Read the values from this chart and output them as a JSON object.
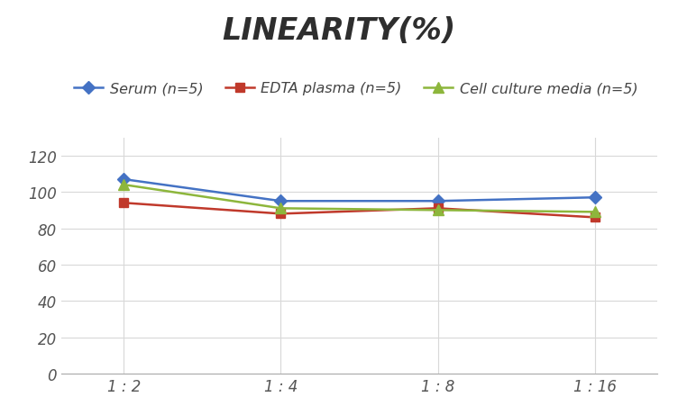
{
  "title": "LINEARITY(%)",
  "x_labels": [
    "1 : 2",
    "1 : 4",
    "1 : 8",
    "1 : 16"
  ],
  "x_positions": [
    0,
    1,
    2,
    3
  ],
  "series": [
    {
      "label": "Serum (n=5)",
      "values": [
        107,
        95,
        95,
        97
      ],
      "color": "#4472C4",
      "marker": "D",
      "markersize": 7,
      "linewidth": 1.8
    },
    {
      "label": "EDTA plasma (n=5)",
      "values": [
        94,
        88,
        91,
        86
      ],
      "color": "#C0392B",
      "marker": "s",
      "markersize": 7,
      "linewidth": 1.8
    },
    {
      "label": "Cell culture media (n=5)",
      "values": [
        104,
        91,
        90,
        89
      ],
      "color": "#8DB63C",
      "marker": "^",
      "markersize": 8,
      "linewidth": 1.8
    }
  ],
  "ylim": [
    0,
    130
  ],
  "yticks": [
    0,
    20,
    40,
    60,
    80,
    100,
    120
  ],
  "background_color": "#ffffff",
  "grid_color": "#d8d8d8",
  "title_fontsize": 24,
  "tick_fontsize": 12,
  "legend_fontsize": 11.5
}
